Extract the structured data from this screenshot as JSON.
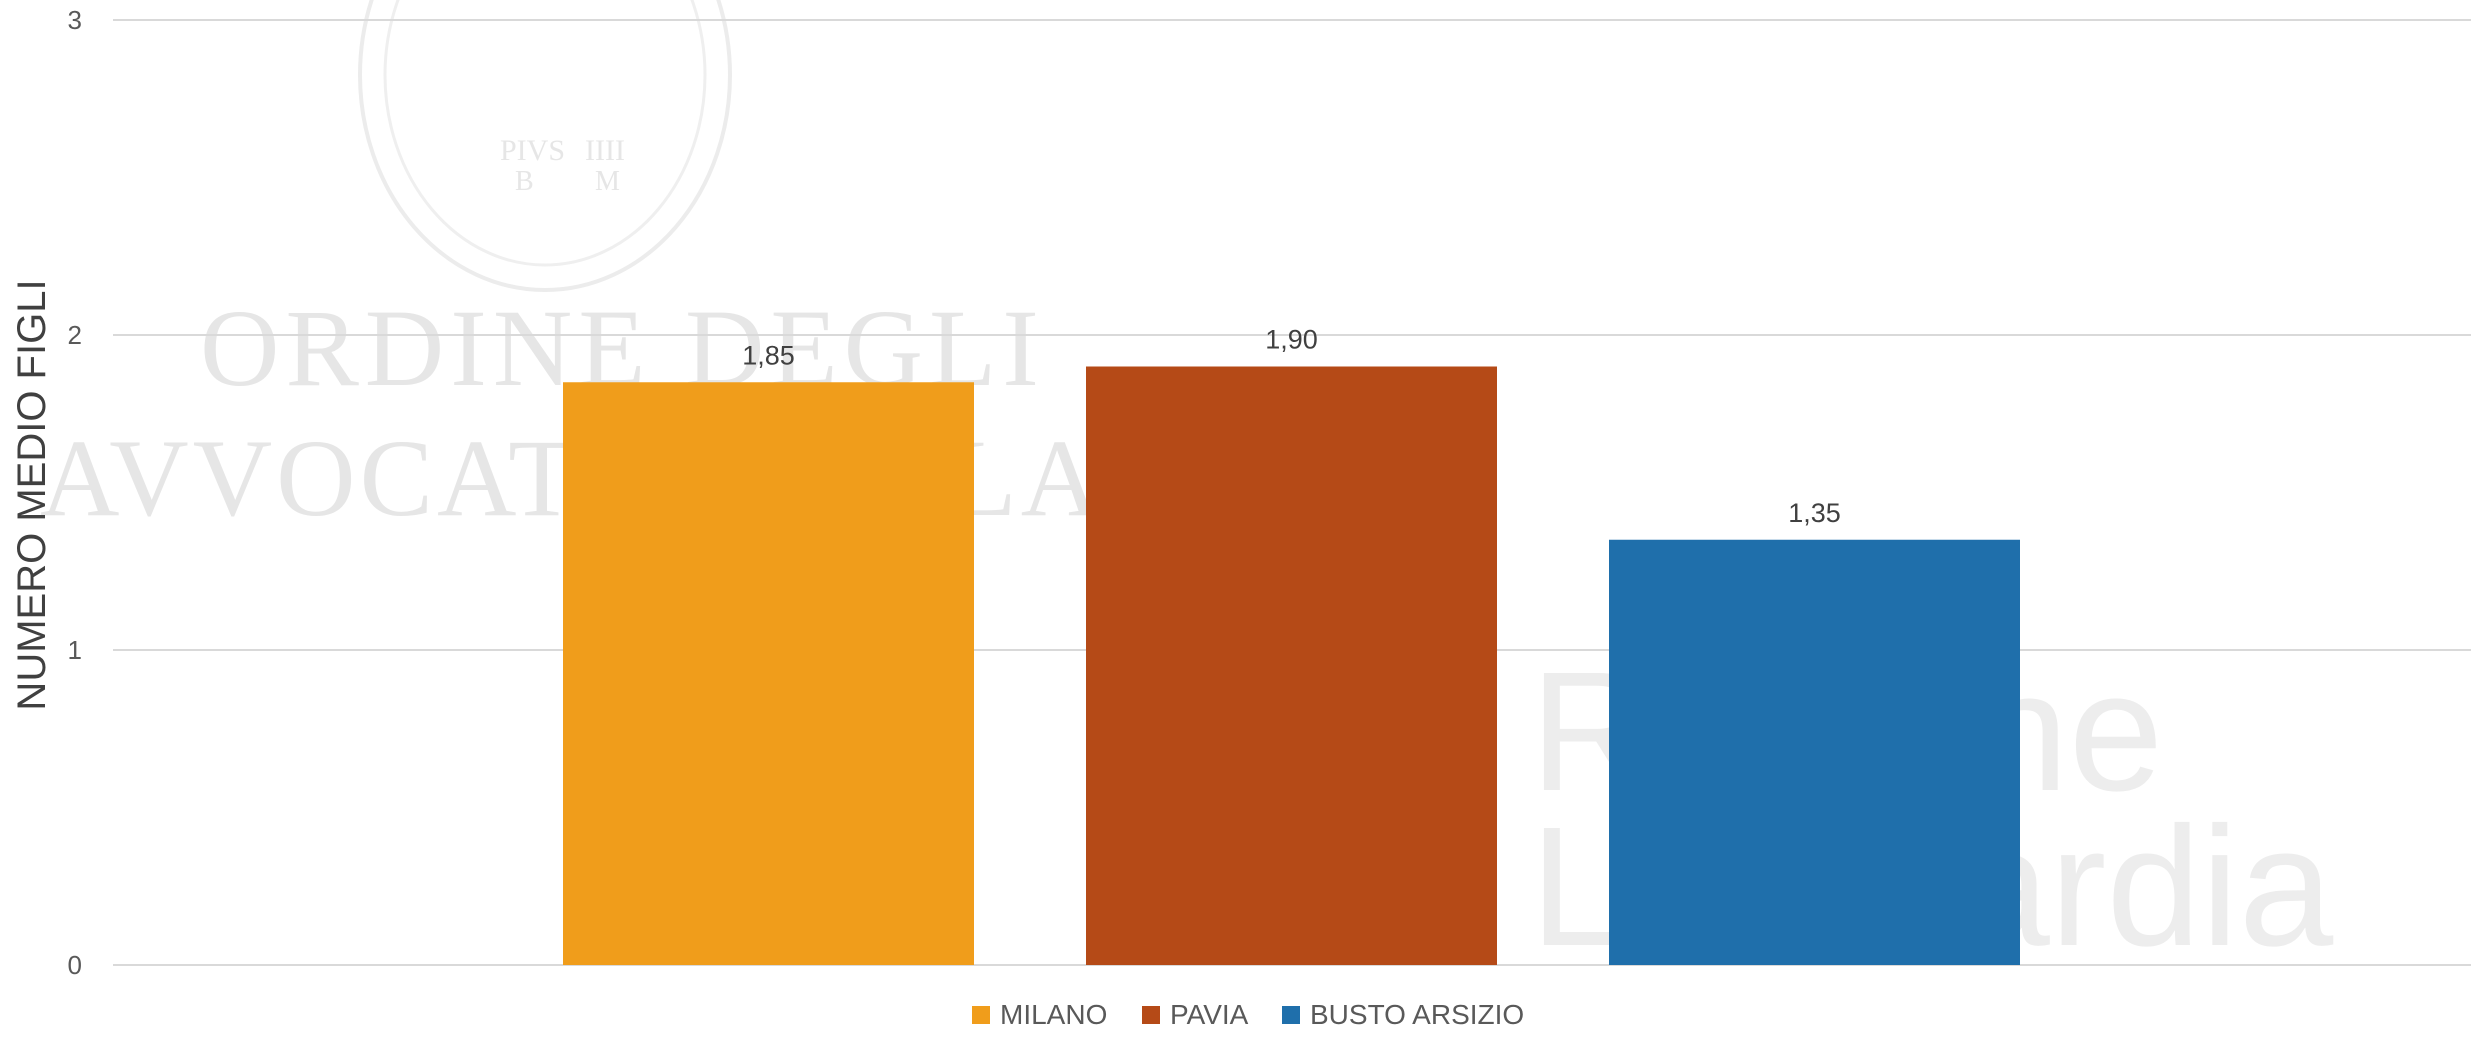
{
  "chart_data": {
    "type": "bar",
    "title": "",
    "xlabel": "",
    "ylabel": "NUMERO MEDIO FIGLI",
    "ylim": [
      0,
      3
    ],
    "yticks": [
      "0",
      "1",
      "2",
      "3"
    ],
    "grid": true,
    "legend_position": "bottom",
    "series": [
      {
        "name": "MILANO",
        "value": 1.85,
        "label": "1,85",
        "color": "#F09D1B"
      },
      {
        "name": "PAVIA",
        "value": 1.9,
        "label": "1,90",
        "color": "#B54A17"
      },
      {
        "name": "BUSTO ARSIZIO",
        "value": 1.35,
        "label": "1,35",
        "color": "#1F6FAB"
      }
    ]
  },
  "watermark": {
    "lines": [
      "ORDINE DEGLI",
      "AVVOCATI DI MILANO",
      "Regione",
      "Lombardia"
    ],
    "seal_text": [
      "PIVS",
      "IIII",
      "B",
      "M"
    ]
  }
}
